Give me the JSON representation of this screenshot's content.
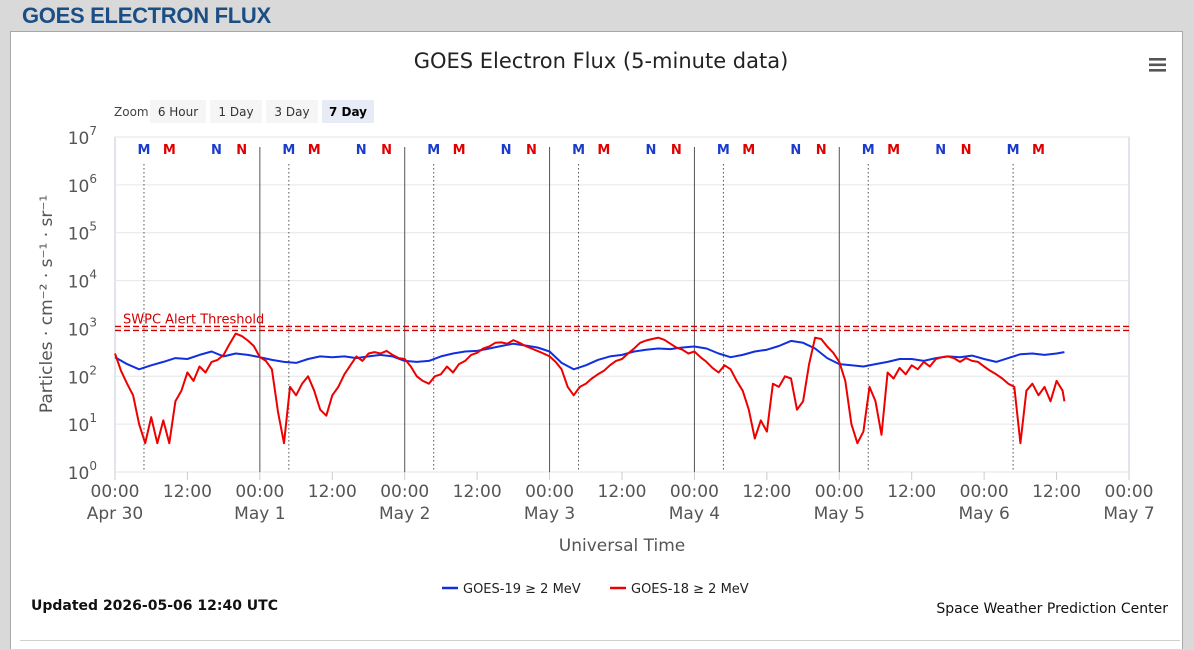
{
  "page": {
    "heading": "GOES ELECTRON FLUX",
    "updated": "Updated 2026-05-06 12:40 UTC",
    "credit": "Space Weather Prediction Center"
  },
  "zoom": {
    "label": "Zoom",
    "options": [
      "6 Hour",
      "1 Day",
      "3 Day",
      "7 Day"
    ],
    "selected": "7 Day"
  },
  "menu": {
    "icon": "hamburger-menu-icon"
  },
  "chart_data": {
    "type": "line",
    "title": "GOES Electron Flux (5-minute data)",
    "xlabel": "Universal Time",
    "ylabel": "Particles · cm⁻² · s⁻¹ · sr⁻¹",
    "y_scale": "log",
    "y_tick_exponents": [
      0,
      1,
      2,
      3,
      4,
      5,
      6,
      7
    ],
    "x_range_hours": [
      0,
      168
    ],
    "x_ticks": [
      {
        "hour": 0,
        "time": "00:00",
        "date": "Apr 30"
      },
      {
        "hour": 12,
        "time": "12:00",
        "date": ""
      },
      {
        "hour": 24,
        "time": "00:00",
        "date": "May 1"
      },
      {
        "hour": 36,
        "time": "12:00",
        "date": ""
      },
      {
        "hour": 48,
        "time": "00:00",
        "date": "May 2"
      },
      {
        "hour": 60,
        "time": "12:00",
        "date": ""
      },
      {
        "hour": 72,
        "time": "00:00",
        "date": "May 3"
      },
      {
        "hour": 84,
        "time": "12:00",
        "date": ""
      },
      {
        "hour": 96,
        "time": "00:00",
        "date": "May 4"
      },
      {
        "hour": 108,
        "time": "12:00",
        "date": ""
      },
      {
        "hour": 120,
        "time": "00:00",
        "date": "May 5"
      },
      {
        "hour": 132,
        "time": "12:00",
        "date": ""
      },
      {
        "hour": 144,
        "time": "00:00",
        "date": "May 6"
      },
      {
        "hour": 156,
        "time": "12:00",
        "date": ""
      },
      {
        "hour": 168,
        "time": "00:00",
        "date": "May 7"
      }
    ],
    "threshold": {
      "label": "SWPC Alert Threshold",
      "value": 1000,
      "color": "#d40000"
    },
    "markers": [
      {
        "hour": 4.8,
        "label": "M",
        "color": "#1a3ccc"
      },
      {
        "hour": 9.0,
        "label": "M",
        "color": "#e00000"
      },
      {
        "hour": 16.8,
        "label": "N",
        "color": "#1a3ccc"
      },
      {
        "hour": 21.0,
        "label": "N",
        "color": "#e00000"
      },
      {
        "hour": 28.8,
        "label": "M",
        "color": "#1a3ccc"
      },
      {
        "hour": 33.0,
        "label": "M",
        "color": "#e00000"
      },
      {
        "hour": 40.8,
        "label": "N",
        "color": "#1a3ccc"
      },
      {
        "hour": 45.0,
        "label": "N",
        "color": "#e00000"
      },
      {
        "hour": 52.8,
        "label": "M",
        "color": "#1a3ccc"
      },
      {
        "hour": 57.0,
        "label": "M",
        "color": "#e00000"
      },
      {
        "hour": 64.8,
        "label": "N",
        "color": "#1a3ccc"
      },
      {
        "hour": 69.0,
        "label": "N",
        "color": "#e00000"
      },
      {
        "hour": 76.8,
        "label": "M",
        "color": "#1a3ccc"
      },
      {
        "hour": 81.0,
        "label": "M",
        "color": "#e00000"
      },
      {
        "hour": 88.8,
        "label": "N",
        "color": "#1a3ccc"
      },
      {
        "hour": 93.0,
        "label": "N",
        "color": "#e00000"
      },
      {
        "hour": 100.8,
        "label": "M",
        "color": "#1a3ccc"
      },
      {
        "hour": 105.0,
        "label": "M",
        "color": "#e00000"
      },
      {
        "hour": 112.8,
        "label": "N",
        "color": "#1a3ccc"
      },
      {
        "hour": 117.0,
        "label": "N",
        "color": "#e00000"
      },
      {
        "hour": 124.8,
        "label": "M",
        "color": "#1a3ccc"
      },
      {
        "hour": 129.0,
        "label": "M",
        "color": "#e00000"
      },
      {
        "hour": 136.8,
        "label": "N",
        "color": "#1a3ccc"
      },
      {
        "hour": 141.0,
        "label": "N",
        "color": "#e00000"
      },
      {
        "hour": 148.8,
        "label": "M",
        "color": "#1a3ccc"
      },
      {
        "hour": 153.0,
        "label": "M",
        "color": "#e00000"
      }
    ],
    "dotted_lines_hours": [
      4.8,
      28.8,
      52.8,
      76.8,
      100.8,
      124.8,
      148.8
    ],
    "day_lines_hours": [
      24,
      48,
      72,
      96,
      120
    ],
    "series": [
      {
        "name": "GOES-19 ≥ 2 MeV",
        "color": "#1030e0",
        "points": [
          [
            0,
            250
          ],
          [
            2,
            180
          ],
          [
            4,
            140
          ],
          [
            6,
            170
          ],
          [
            8,
            200
          ],
          [
            10,
            240
          ],
          [
            12,
            230
          ],
          [
            14,
            280
          ],
          [
            16,
            330
          ],
          [
            18,
            260
          ],
          [
            20,
            300
          ],
          [
            22,
            280
          ],
          [
            24,
            250
          ],
          [
            26,
            220
          ],
          [
            28,
            200
          ],
          [
            30,
            190
          ],
          [
            32,
            230
          ],
          [
            34,
            260
          ],
          [
            36,
            250
          ],
          [
            38,
            260
          ],
          [
            40,
            240
          ],
          [
            42,
            260
          ],
          [
            44,
            280
          ],
          [
            46,
            260
          ],
          [
            48,
            210
          ],
          [
            50,
            200
          ],
          [
            52,
            210
          ],
          [
            54,
            260
          ],
          [
            56,
            300
          ],
          [
            58,
            330
          ],
          [
            60,
            340
          ],
          [
            62,
            380
          ],
          [
            64,
            430
          ],
          [
            66,
            480
          ],
          [
            68,
            440
          ],
          [
            70,
            400
          ],
          [
            72,
            330
          ],
          [
            74,
            190
          ],
          [
            76,
            140
          ],
          [
            78,
            170
          ],
          [
            80,
            220
          ],
          [
            82,
            260
          ],
          [
            84,
            280
          ],
          [
            86,
            330
          ],
          [
            88,
            360
          ],
          [
            90,
            380
          ],
          [
            92,
            370
          ],
          [
            94,
            400
          ],
          [
            96,
            420
          ],
          [
            98,
            380
          ],
          [
            100,
            300
          ],
          [
            102,
            250
          ],
          [
            104,
            280
          ],
          [
            106,
            330
          ],
          [
            108,
            360
          ],
          [
            110,
            430
          ],
          [
            112,
            550
          ],
          [
            114,
            500
          ],
          [
            116,
            380
          ],
          [
            118,
            240
          ],
          [
            120,
            180
          ],
          [
            122,
            170
          ],
          [
            124,
            160
          ],
          [
            126,
            180
          ],
          [
            128,
            200
          ],
          [
            130,
            230
          ],
          [
            132,
            230
          ],
          [
            134,
            210
          ],
          [
            136,
            240
          ],
          [
            138,
            260
          ],
          [
            140,
            250
          ],
          [
            142,
            270
          ],
          [
            144,
            230
          ],
          [
            146,
            200
          ],
          [
            148,
            240
          ],
          [
            150,
            290
          ],
          [
            152,
            300
          ],
          [
            154,
            280
          ],
          [
            156,
            300
          ],
          [
            157.3,
            320
          ]
        ]
      },
      {
        "name": "GOES-18 ≥ 2 MeV",
        "color": "#ee0000",
        "points": [
          [
            0,
            300
          ],
          [
            1,
            130
          ],
          [
            2,
            70
          ],
          [
            3,
            40
          ],
          [
            4,
            10
          ],
          [
            5,
            4
          ],
          [
            6,
            14
          ],
          [
            7,
            4
          ],
          [
            8,
            12
          ],
          [
            9,
            4
          ],
          [
            10,
            30
          ],
          [
            11,
            50
          ],
          [
            12,
            120
          ],
          [
            13,
            80
          ],
          [
            14,
            160
          ],
          [
            15,
            120
          ],
          [
            16,
            200
          ],
          [
            17,
            220
          ],
          [
            18,
            280
          ],
          [
            19,
            480
          ],
          [
            20,
            780
          ],
          [
            21,
            690
          ],
          [
            22,
            560
          ],
          [
            23,
            430
          ],
          [
            24,
            250
          ],
          [
            25,
            210
          ],
          [
            26,
            140
          ],
          [
            27,
            18
          ],
          [
            28,
            4
          ],
          [
            29,
            60
          ],
          [
            30,
            40
          ],
          [
            31,
            70
          ],
          [
            32,
            100
          ],
          [
            33,
            50
          ],
          [
            34,
            20
          ],
          [
            35,
            15
          ],
          [
            36,
            40
          ],
          [
            37,
            60
          ],
          [
            38,
            110
          ],
          [
            39,
            170
          ],
          [
            40,
            260
          ],
          [
            41,
            210
          ],
          [
            42,
            300
          ],
          [
            43,
            320
          ],
          [
            44,
            300
          ],
          [
            45,
            340
          ],
          [
            46,
            280
          ],
          [
            47,
            240
          ],
          [
            48,
            230
          ],
          [
            49,
            160
          ],
          [
            50,
            100
          ],
          [
            51,
            80
          ],
          [
            52,
            70
          ],
          [
            53,
            100
          ],
          [
            54,
            110
          ],
          [
            55,
            160
          ],
          [
            56,
            120
          ],
          [
            57,
            180
          ],
          [
            58,
            210
          ],
          [
            59,
            280
          ],
          [
            60,
            310
          ],
          [
            61,
            380
          ],
          [
            62,
            420
          ],
          [
            63,
            500
          ],
          [
            64,
            510
          ],
          [
            65,
            480
          ],
          [
            66,
            570
          ],
          [
            67,
            500
          ],
          [
            68,
            430
          ],
          [
            69,
            380
          ],
          [
            70,
            340
          ],
          [
            71,
            300
          ],
          [
            72,
            260
          ],
          [
            73,
            200
          ],
          [
            74,
            140
          ],
          [
            75,
            60
          ],
          [
            76,
            40
          ],
          [
            77,
            60
          ],
          [
            78,
            70
          ],
          [
            79,
            90
          ],
          [
            80,
            110
          ],
          [
            81,
            130
          ],
          [
            82,
            170
          ],
          [
            83,
            210
          ],
          [
            84,
            230
          ],
          [
            85,
            300
          ],
          [
            86,
            380
          ],
          [
            87,
            500
          ],
          [
            88,
            560
          ],
          [
            89,
            600
          ],
          [
            90,
            640
          ],
          [
            91,
            580
          ],
          [
            92,
            480
          ],
          [
            93,
            400
          ],
          [
            94,
            360
          ],
          [
            95,
            300
          ],
          [
            96,
            330
          ],
          [
            97,
            250
          ],
          [
            98,
            200
          ],
          [
            99,
            150
          ],
          [
            100,
            120
          ],
          [
            101,
            170
          ],
          [
            102,
            140
          ],
          [
            103,
            80
          ],
          [
            104,
            50
          ],
          [
            105,
            20
          ],
          [
            106,
            5
          ],
          [
            107,
            12
          ],
          [
            108,
            7
          ],
          [
            109,
            70
          ],
          [
            110,
            60
          ],
          [
            111,
            100
          ],
          [
            112,
            90
          ],
          [
            113,
            20
          ],
          [
            114,
            30
          ],
          [
            115,
            180
          ],
          [
            116,
            640
          ],
          [
            117,
            600
          ],
          [
            118,
            420
          ],
          [
            119,
            310
          ],
          [
            120,
            200
          ],
          [
            121,
            80
          ],
          [
            122,
            10
          ],
          [
            123,
            4
          ],
          [
            124,
            7
          ],
          [
            125,
            60
          ],
          [
            126,
            30
          ],
          [
            127,
            6
          ],
          [
            128,
            120
          ],
          [
            129,
            90
          ],
          [
            130,
            150
          ],
          [
            131,
            110
          ],
          [
            132,
            170
          ],
          [
            133,
            140
          ],
          [
            134,
            200
          ],
          [
            135,
            160
          ],
          [
            136,
            230
          ],
          [
            137,
            250
          ],
          [
            138,
            260
          ],
          [
            139,
            240
          ],
          [
            140,
            200
          ],
          [
            141,
            240
          ],
          [
            142,
            210
          ],
          [
            143,
            200
          ],
          [
            144,
            160
          ],
          [
            145,
            130
          ],
          [
            146,
            110
          ],
          [
            147,
            90
          ],
          [
            148,
            70
          ],
          [
            149,
            60
          ],
          [
            150,
            4
          ],
          [
            151,
            50
          ],
          [
            152,
            70
          ],
          [
            153,
            40
          ],
          [
            154,
            60
          ],
          [
            155,
            30
          ],
          [
            156,
            80
          ],
          [
            157,
            50
          ],
          [
            157.3,
            30
          ]
        ]
      }
    ]
  }
}
